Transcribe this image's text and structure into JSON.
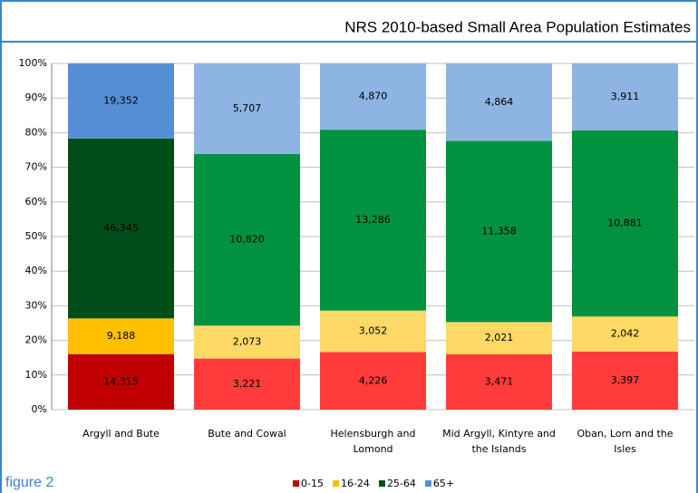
{
  "chart_data": {
    "type": "stacked-percent-bar",
    "title": "NRS 2010-based Small Area Population Estimates",
    "caption": "figure 2",
    "categories": [
      "Argyll and Bute",
      "Bute and Cowal",
      "Helensburgh and Lomond",
      "Mid Argyll, Kintyre and the Islands",
      "Oban, Lorn and the Isles"
    ],
    "series": [
      {
        "name": "0-15",
        "color": "#c00000",
        "colors": [
          "#c00000",
          "#ff3b3b",
          "#ff3b3b",
          "#ff3b3b",
          "#ff3b3b"
        ],
        "values": [
          14315,
          3221,
          4226,
          3471,
          3397
        ],
        "value_labels": [
          "14,315",
          "3,221",
          "4,226",
          "3,471",
          "3,397"
        ]
      },
      {
        "name": "16-24",
        "color": "#ffc000",
        "colors": [
          "#ffc000",
          "#ffd966",
          "#ffd966",
          "#ffd966",
          "#ffd966"
        ],
        "values": [
          9188,
          2073,
          3052,
          2021,
          2042
        ],
        "value_labels": [
          "9,188",
          "2,073",
          "3,052",
          "2,021",
          "2,042"
        ]
      },
      {
        "name": "25-64",
        "color": "#004d1a",
        "colors": [
          "#004d1a",
          "#00923f",
          "#00923f",
          "#00923f",
          "#00923f"
        ],
        "values": [
          46345,
          10820,
          13286,
          11358,
          10881
        ],
        "value_labels": [
          "46,345",
          "10,820",
          "13,286",
          "11,358",
          "10,881"
        ]
      },
      {
        "name": "65+",
        "color": "#558ed5",
        "colors": [
          "#558ed5",
          "#8db4e2",
          "#8db4e2",
          "#8db4e2",
          "#8db4e2"
        ],
        "values": [
          19352,
          5707,
          4870,
          4864,
          3911
        ],
        "value_labels": [
          "19,352",
          "5,707",
          "4,870",
          "4,864",
          "3,911"
        ]
      }
    ],
    "ylim": [
      0,
      100
    ],
    "yticks": [
      {
        "value": 0,
        "label": "0%"
      },
      {
        "value": 10,
        "label": "10%"
      },
      {
        "value": 20,
        "label": "20%"
      },
      {
        "value": 30,
        "label": "30%"
      },
      {
        "value": 40,
        "label": "40%"
      },
      {
        "value": 50,
        "label": "50%"
      },
      {
        "value": 60,
        "label": "60%"
      },
      {
        "value": 70,
        "label": "70%"
      },
      {
        "value": 80,
        "label": "80%"
      },
      {
        "value": 90,
        "label": "90%"
      },
      {
        "value": 100,
        "label": "100%"
      }
    ],
    "grid": true,
    "legend": "bottom"
  }
}
